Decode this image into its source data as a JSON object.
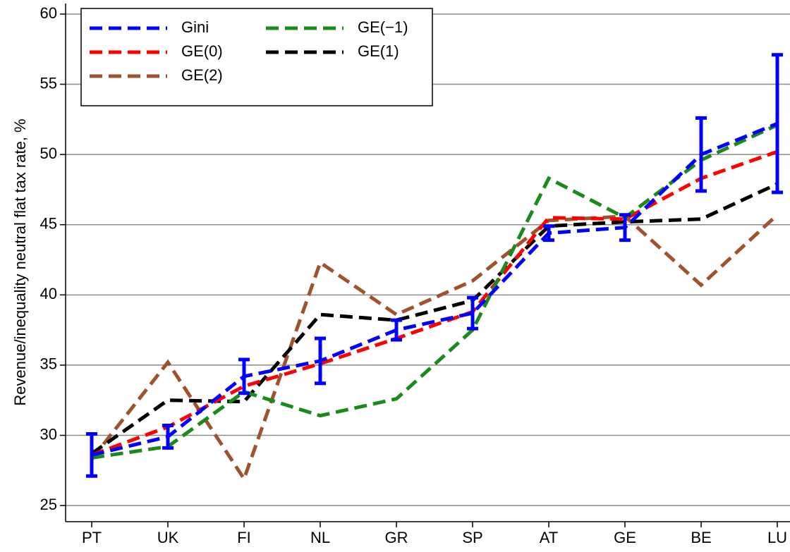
{
  "chart_data": {
    "type": "line",
    "y_label": "Revenue/inequality neutral flat tax rate, %",
    "categories": [
      "PT",
      "UK",
      "FI",
      "NL",
      "GR",
      "SP",
      "AT",
      "GE",
      "BE",
      "LU"
    ],
    "series": [
      {
        "name": "Gini",
        "color": "#0000ff",
        "values": [
          28.6,
          29.9,
          34.2,
          35.3,
          37.5,
          38.7,
          44.4,
          44.8,
          50.0,
          52.2
        ],
        "errors": [
          1.5,
          0.8,
          1.2,
          1.6,
          0.7,
          1.1,
          0.5,
          0.9,
          2.6,
          4.9
        ]
      },
      {
        "name": "GE(−1)",
        "color": "#1a8a1a",
        "values": [
          28.4,
          29.2,
          33.1,
          31.4,
          32.6,
          37.5,
          48.3,
          45.5,
          49.6,
          52.1
        ]
      },
      {
        "name": "GE(0)",
        "color": "#ff0000",
        "values": [
          28.6,
          30.6,
          33.5,
          35.1,
          36.9,
          38.8,
          45.5,
          45.4,
          48.3,
          50.2
        ]
      },
      {
        "name": "GE(1)",
        "color": "#000000",
        "values": [
          28.7,
          32.5,
          32.4,
          38.6,
          38.2,
          39.6,
          44.9,
          45.2,
          45.4,
          47.9
        ]
      },
      {
        "name": "GE(2)",
        "color": "#a0522d",
        "values": [
          28.3,
          35.2,
          26.9,
          42.3,
          38.6,
          41.0,
          45.3,
          45.6,
          40.7,
          45.7
        ]
      }
    ],
    "ylim": [
      23.85,
      60.75
    ],
    "yticks": [
      25,
      30,
      35,
      40,
      45,
      50,
      55,
      60
    ],
    "grid": true,
    "legend": "upper-left"
  }
}
